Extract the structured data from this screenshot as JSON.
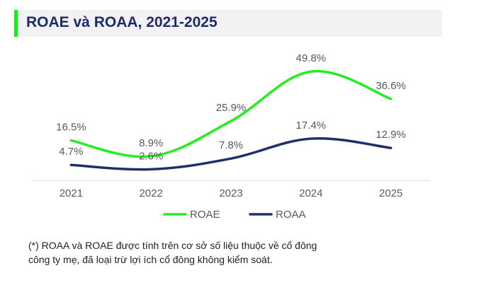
{
  "title": "ROAE và ROAA, 2021-2025",
  "colors": {
    "accent": "#22e51e",
    "title": "#1d2d6b",
    "roae": "#22ee22",
    "roaa": "#1f2f6b"
  },
  "chart_data": {
    "type": "line",
    "categories": [
      "2021",
      "2022",
      "2023",
      "2024",
      "2025"
    ],
    "series": [
      {
        "name": "ROAE",
        "values": [
          16.5,
          8.9,
          25.9,
          49.8,
          36.6
        ],
        "labels": [
          "16.5%",
          "8.9%",
          "25.9%",
          "49.8%",
          "36.6%"
        ],
        "color": "#22ee22"
      },
      {
        "name": "ROAA",
        "values": [
          4.7,
          2.6,
          7.8,
          17.4,
          12.9
        ],
        "labels": [
          "4.7%",
          "2.6%",
          "7.8%",
          "17.4%",
          "12.9%"
        ],
        "color": "#1f2f6b"
      }
    ],
    "smooth": true,
    "legend": "bottom",
    "grid": false,
    "ylim": [
      0,
      55
    ]
  },
  "footnote": {
    "line1": "(*) ROAA và ROAE được tính trên cơ sở số liệu thuộc về cổ đông",
    "line2": "công ty mẹ, đã loại trừ lợi ích cổ đông không kiểm soát."
  }
}
